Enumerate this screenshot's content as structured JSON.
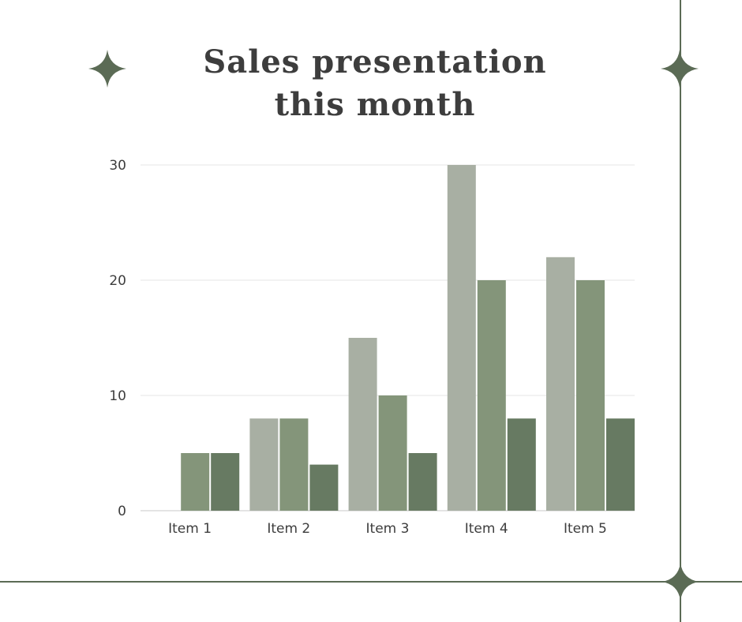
{
  "title_line1": "Sales presentation",
  "title_line2": "this month",
  "chart_data": {
    "type": "bar",
    "title": "Sales presentation this month",
    "xlabel": "",
    "ylabel": "",
    "categories": [
      "Item 1",
      "Item 2",
      "Item 3",
      "Item 4",
      "Item 5"
    ],
    "series": [
      {
        "values": [
          0,
          8,
          15,
          30,
          22
        ],
        "color": "#a8afa3"
      },
      {
        "values": [
          5,
          8,
          10,
          20,
          20
        ],
        "color": "#84957a"
      },
      {
        "values": [
          5,
          4,
          5,
          8,
          8
        ],
        "color": "#677a62"
      }
    ],
    "ylim": [
      0,
      30
    ],
    "yticks": [
      0,
      10,
      20,
      30
    ],
    "grid": true,
    "legend": "none"
  },
  "colors": {
    "accent": "#5b6b55",
    "text": "#3d3d3d",
    "grid": "#e6e6e6"
  },
  "decorations": [
    "sparkle-star-icon",
    "sparkle-star-icon",
    "sparkle-star-icon"
  ]
}
